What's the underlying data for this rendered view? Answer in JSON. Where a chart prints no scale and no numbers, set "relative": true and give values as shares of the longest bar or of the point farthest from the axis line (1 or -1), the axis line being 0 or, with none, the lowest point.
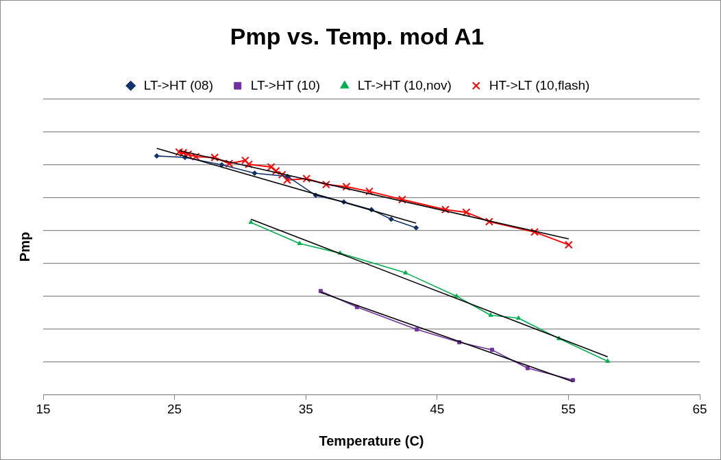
{
  "chart_data": {
    "type": "line",
    "title": "Pmp vs. Temp. mod A1",
    "xlabel": "Temperature (C)",
    "ylabel": "Pmp",
    "relative": true,
    "xlim": [
      15,
      65
    ],
    "xticks": [
      15,
      25,
      35,
      45,
      55,
      65
    ],
    "grid": "y",
    "legend": "top",
    "line_style": "solid",
    "series": [
      {
        "name": "LT->HT (08)",
        "color": "#12326e",
        "marker": "diamond",
        "x": [
          23.65,
          25.8,
          28.6,
          31.1,
          33.6,
          35.75,
          37.9,
          40.0,
          41.5,
          43.4
        ],
        "values": [
          0.969,
          0.963,
          0.933,
          0.899,
          0.886,
          0.809,
          0.782,
          0.751,
          0.712,
          0.677
        ]
      },
      {
        "name": "LT->HT (10)",
        "color": "#7030a0",
        "marker": "square",
        "x": [
          36.13,
          38.89,
          43.45,
          46.69,
          49.18,
          51.89,
          55.34
        ],
        "values": [
          0.42,
          0.355,
          0.264,
          0.212,
          0.181,
          0.107,
          0.058
        ]
      },
      {
        "name": "LT->HT (10,nov)",
        "color": "#00b050",
        "marker": "triangle",
        "x": [
          30.82,
          34.53,
          37.61,
          42.6,
          46.48,
          49.08,
          51.2,
          54.28,
          57.99
        ],
        "values": [
          0.699,
          0.613,
          0.574,
          0.494,
          0.399,
          0.322,
          0.31,
          0.227,
          0.135
        ]
      },
      {
        "name": "HT->LT (10,flash)",
        "color": "#ff0000",
        "marker": "cross",
        "x": [
          25.35,
          25.67,
          26.04,
          26.62,
          28.06,
          29.17,
          30.39,
          30.66,
          32.36,
          32.73,
          33.2,
          33.58,
          35.06,
          36.55,
          38.09,
          39.84,
          42.34,
          45.63,
          47.22,
          48.97,
          52.42,
          55.02
        ],
        "values": [
          0.985,
          0.982,
          0.976,
          0.966,
          0.963,
          0.938,
          0.951,
          0.935,
          0.924,
          0.908,
          0.893,
          0.871,
          0.877,
          0.853,
          0.844,
          0.825,
          0.792,
          0.751,
          0.74,
          0.702,
          0.66,
          0.608
        ]
      },
      {
        "color": "#000000",
        "marker": "none",
        "x": [
          23.65,
          43.4
        ],
        "values": [
          1.0,
          0.696
        ]
      },
      {
        "color": "#000000",
        "marker": "none",
        "x": [
          25.35,
          55.02
        ],
        "values": [
          0.991,
          0.632
        ]
      },
      {
        "color": "#000000",
        "marker": "none",
        "x": [
          30.82,
          57.99
        ],
        "values": [
          0.712,
          0.153
        ]
      },
      {
        "color": "#000000",
        "marker": "none",
        "x": [
          36.13,
          55.34
        ],
        "values": [
          0.414,
          0.052
        ]
      }
    ]
  }
}
